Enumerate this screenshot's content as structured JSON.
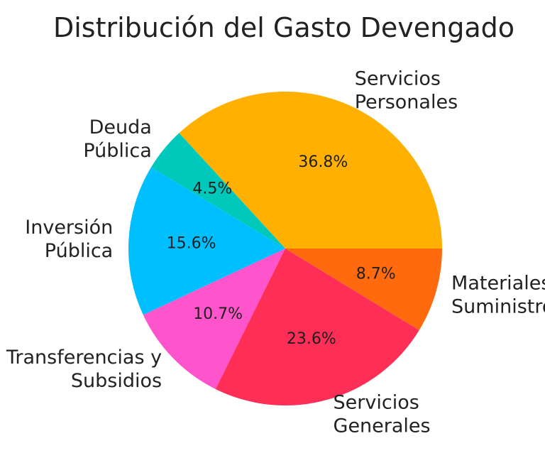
{
  "chart_data": {
    "type": "pie",
    "title": "Distribución del Gasto Devengado",
    "categories": [
      "Servicios Personales",
      "Deuda Pública",
      "Inversión Pública",
      "Transferencias y Subsidios",
      "Servicios Generales",
      "Materiales y Suministros"
    ],
    "values": [
      36.8,
      4.5,
      15.6,
      10.7,
      23.6,
      8.7
    ],
    "value_labels": [
      "36.8%",
      "4.5%",
      "15.6%",
      "10.7%",
      "23.6%",
      "8.7%"
    ],
    "colors": [
      "#FFB000",
      "#00C9BB",
      "#00BFFF",
      "#FF55CC",
      "#FF2E57",
      "#FF6A0E"
    ],
    "legend": "none"
  }
}
